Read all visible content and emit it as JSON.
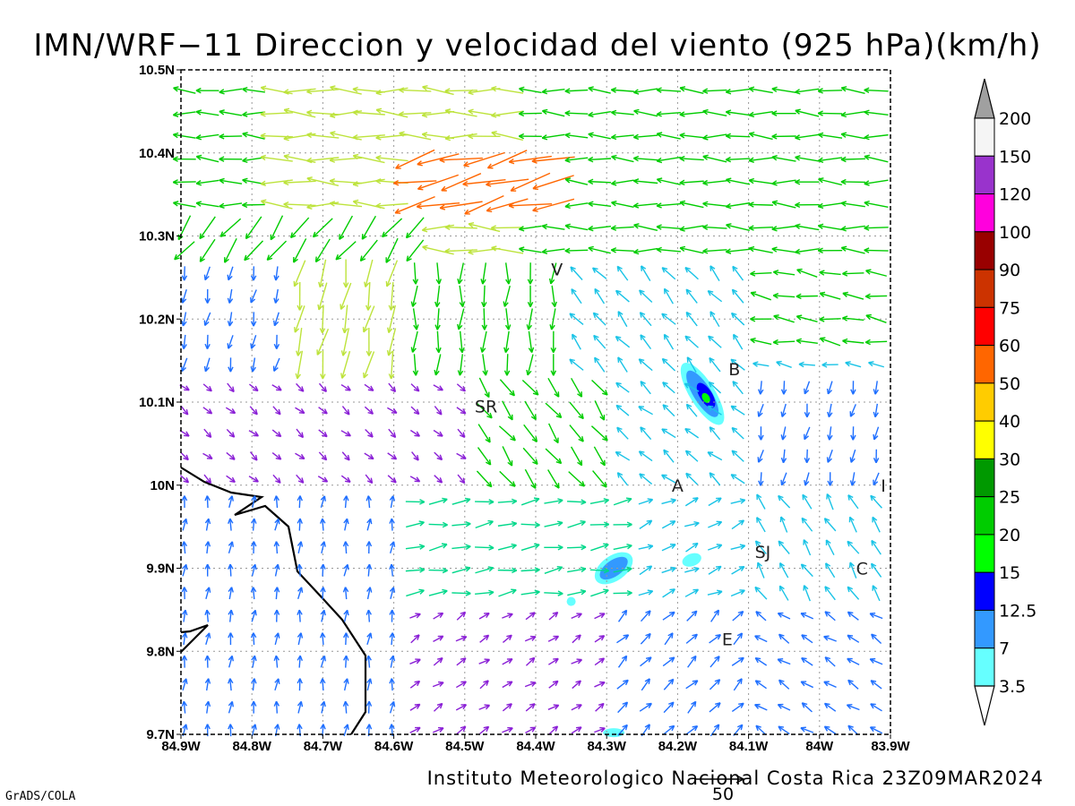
{
  "title": "IMN/WRF−11 Direccion y velocidad del viento (925 hPa)(km/h)",
  "footer_text": "Instituto Meteorologico Nacional Costa Rica 23Z09MAR2024",
  "credit": "GrADS/COLA",
  "reference_vector_label": "50",
  "axes": {
    "x_ticks": [
      "84.9W",
      "84.8W",
      "84.7W",
      "84.6W",
      "84.5W",
      "84.4W",
      "84.3W",
      "84.2W",
      "84.1W",
      "84W",
      "83.9W"
    ],
    "y_ticks": [
      "10.5N",
      "10.4N",
      "10.3N",
      "10.2N",
      "10.1N",
      "10N",
      "9.9N",
      "9.8N",
      "9.7N"
    ],
    "lon_range": [
      -84.9,
      -83.9
    ],
    "lat_range": [
      9.7,
      10.5
    ]
  },
  "colorbar": {
    "labels": [
      "200",
      "150",
      "120",
      "100",
      "90",
      "75",
      "60",
      "50",
      "40",
      "30",
      "25",
      "20",
      "15",
      "12.5",
      "7",
      "3.5"
    ],
    "colors": [
      "#a0a0a0",
      "#f5f5f5",
      "#9933cc",
      "#ff00dd",
      "#990000",
      "#cc3300",
      "#ff0000",
      "#ff6600",
      "#ffcc00",
      "#ffff00",
      "#009900",
      "#00cc00",
      "#00ff00",
      "#0000ff",
      "#3399ff",
      "#66ffff"
    ]
  },
  "cities": [
    {
      "label": "V",
      "lon": -84.37,
      "lat": 10.26
    },
    {
      "label": "B",
      "lon": -84.12,
      "lat": 10.14
    },
    {
      "label": "SR",
      "lon": -84.47,
      "lat": 10.095
    },
    {
      "label": "A",
      "lon": -84.2,
      "lat": 10.0
    },
    {
      "label": "I",
      "lon": -83.91,
      "lat": 10.0
    },
    {
      "label": "SJ",
      "lon": -84.08,
      "lat": 9.92
    },
    {
      "label": "C",
      "lon": -83.94,
      "lat": 9.9
    },
    {
      "label": "E",
      "lon": -84.13,
      "lat": 9.815
    }
  ]
}
